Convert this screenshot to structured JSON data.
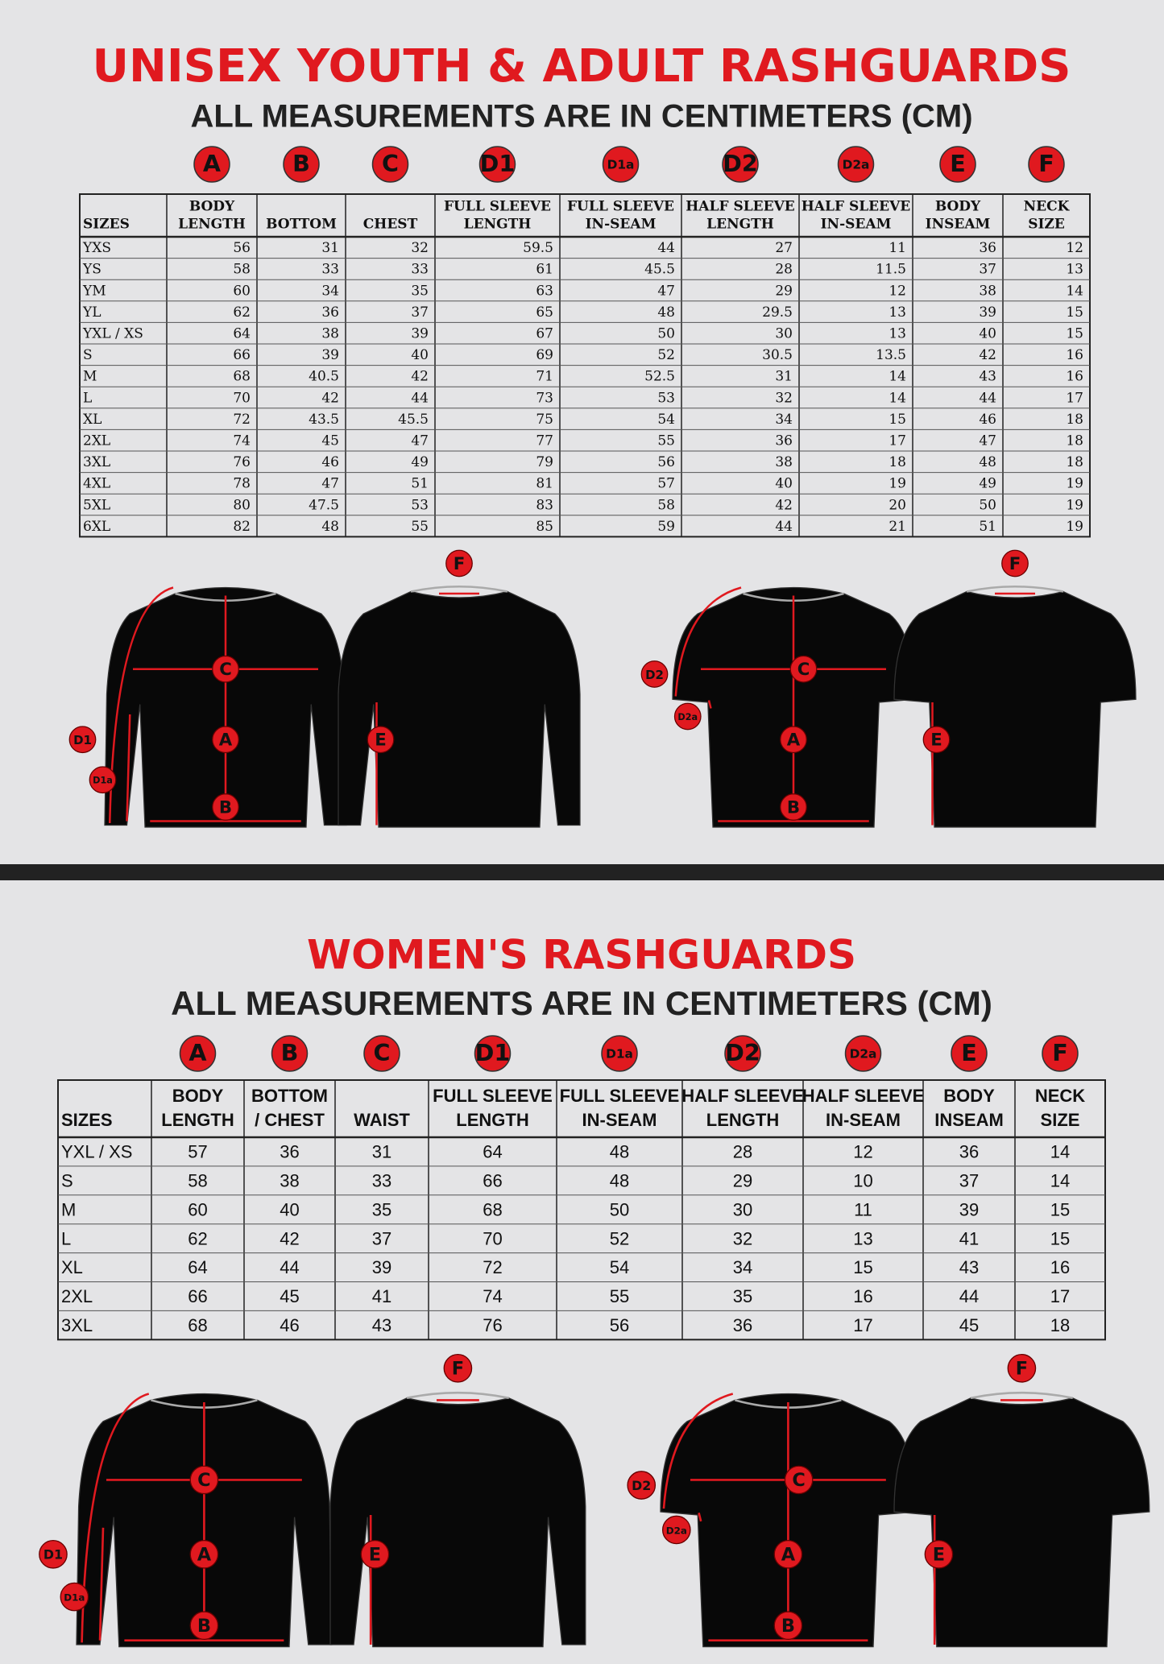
{
  "unisex": {
    "title": "UNISEX YOUTH & ADULT RASHGUARDS",
    "subtitle": "ALL MEASUREMENTS ARE IN CENTIMETERS (CM)",
    "letters": [
      "A",
      "B",
      "C",
      "D1",
      "D1a",
      "D2",
      "D2a",
      "E",
      "F"
    ],
    "table": {
      "header": [
        [
          "SIZES"
        ],
        [
          "BODY",
          "LENGTH"
        ],
        [
          "BOTTOM"
        ],
        [
          "CHEST"
        ],
        [
          "FULL SLEEVE",
          "LENGTH"
        ],
        [
          "FULL SLEEVE",
          "IN-SEAM"
        ],
        [
          "HALF SLEEVE",
          "LENGTH"
        ],
        [
          "HALF SLEEVE",
          "IN-SEAM"
        ],
        [
          "BODY",
          "INSEAM"
        ],
        [
          "NECK",
          "SIZE"
        ]
      ],
      "rows": [
        [
          "YXS",
          56,
          31,
          32,
          59.5,
          44,
          27,
          11,
          36,
          12
        ],
        [
          "YS",
          58,
          33,
          33,
          61,
          45.5,
          28,
          11.5,
          37,
          13
        ],
        [
          "YM",
          60,
          34,
          35,
          63,
          47,
          29,
          12,
          38,
          14
        ],
        [
          "YL",
          62,
          36,
          37,
          65,
          48,
          29.5,
          13,
          39,
          15
        ],
        [
          "YXL / XS",
          64,
          38,
          39,
          67,
          50,
          30,
          13,
          40,
          15
        ],
        [
          "S",
          66,
          39,
          40,
          69,
          52,
          30.5,
          13.5,
          42,
          16
        ],
        [
          "M",
          68,
          40.5,
          42,
          71,
          52.5,
          31,
          14,
          43,
          16
        ],
        [
          "L",
          70,
          42,
          44,
          73,
          53,
          32,
          14,
          44,
          17
        ],
        [
          "XL",
          72,
          43.5,
          45.5,
          75,
          54,
          34,
          15,
          46,
          18
        ],
        [
          "2XL",
          74,
          45,
          47,
          77,
          55,
          36,
          17,
          47,
          18
        ],
        [
          "3XL",
          76,
          46,
          49,
          79,
          56,
          38,
          18,
          48,
          18
        ],
        [
          "4XL",
          78,
          47,
          51,
          81,
          57,
          40,
          19,
          49,
          19
        ],
        [
          "5XL",
          80,
          47.5,
          53,
          83,
          58,
          42,
          20,
          50,
          19
        ],
        [
          "6XL",
          82,
          48,
          55,
          85,
          59,
          44,
          21,
          51,
          19
        ]
      ]
    }
  },
  "women": {
    "title": "WOMEN'S RASHGUARDS",
    "subtitle": "ALL MEASUREMENTS ARE IN CENTIMETERS (CM)",
    "letters": [
      "A",
      "B",
      "C",
      "D1",
      "D1a",
      "D2",
      "D2a",
      "E",
      "F"
    ],
    "table": {
      "header": [
        [
          "SIZES"
        ],
        [
          "BODY",
          "LENGTH"
        ],
        [
          "BOTTOM",
          "/ CHEST"
        ],
        [
          "WAIST"
        ],
        [
          "FULL SLEEVE",
          "LENGTH"
        ],
        [
          "FULL SLEEVE",
          "IN-SEAM"
        ],
        [
          "HALF SLEEVE",
          "LENGTH"
        ],
        [
          "HALF SLEEVE",
          "IN-SEAM"
        ],
        [
          "BODY",
          "INSEAM"
        ],
        [
          "NECK",
          "SIZE"
        ]
      ],
      "rows": [
        [
          "YXL / XS",
          57,
          36,
          31,
          64,
          48,
          28,
          12,
          36,
          14
        ],
        [
          "S",
          58,
          38,
          33,
          66,
          48,
          29,
          10,
          37,
          14
        ],
        [
          "M",
          60,
          40,
          35,
          68,
          50,
          30,
          11,
          39,
          15
        ],
        [
          "L",
          62,
          42,
          37,
          70,
          52,
          32,
          13,
          41,
          15
        ],
        [
          "XL",
          64,
          44,
          39,
          72,
          54,
          34,
          15,
          43,
          16
        ],
        [
          "2XL",
          66,
          45,
          41,
          74,
          55,
          35,
          16,
          44,
          17
        ],
        [
          "3XL",
          68,
          46,
          43,
          76,
          56,
          36,
          17,
          45,
          18
        ]
      ]
    }
  }
}
